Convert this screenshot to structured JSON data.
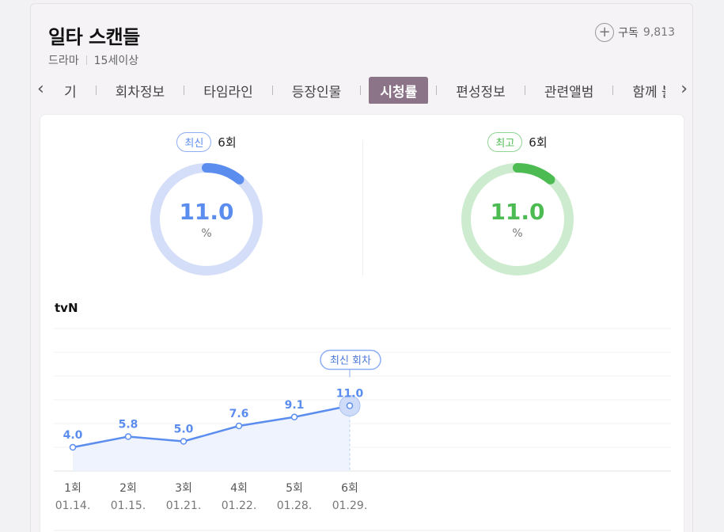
{
  "program": {
    "title": "일타 스캔들",
    "genre": "드라마",
    "rating": "15세이상",
    "subscribe_label": "구독",
    "subscriber_count": "9,813"
  },
  "tabs": {
    "prev_icon": "chevron-left-icon",
    "next_icon": "chevron-right-icon",
    "items": [
      "기",
      "회차정보",
      "타임라인",
      "등장인물",
      "시청률",
      "편성정보",
      "관련앨범",
      "함께 볼만한 드"
    ],
    "active": "시청률"
  },
  "latest": {
    "badge": "최신",
    "episode": "6회",
    "value": "11.0",
    "unit": "%",
    "fraction": 0.11,
    "color": "#5b8def",
    "track_color": "#d4def8"
  },
  "highest": {
    "badge": "최고",
    "episode": "6회",
    "value": "11.0",
    "unit": "%",
    "fraction": 0.11,
    "color": "#4cbc52",
    "track_color": "#cdeccf"
  },
  "network": "tvN",
  "chart_data": {
    "type": "line",
    "categories": [
      "1회",
      "2회",
      "3회",
      "4회",
      "5회",
      "6회"
    ],
    "dates": [
      "01.14.",
      "01.15.",
      "01.21.",
      "01.22.",
      "01.28.",
      "01.29."
    ],
    "values": [
      4.0,
      5.8,
      5.0,
      7.6,
      9.1,
      11.0
    ],
    "value_labels": [
      "4.0",
      "5.8",
      "5.0",
      "7.6",
      "9.1",
      "11.0"
    ],
    "ylim": [
      0,
      20
    ],
    "grid": true,
    "highlight_label": "최신 회차",
    "highlight_index": 5,
    "color": "#5b8def"
  }
}
